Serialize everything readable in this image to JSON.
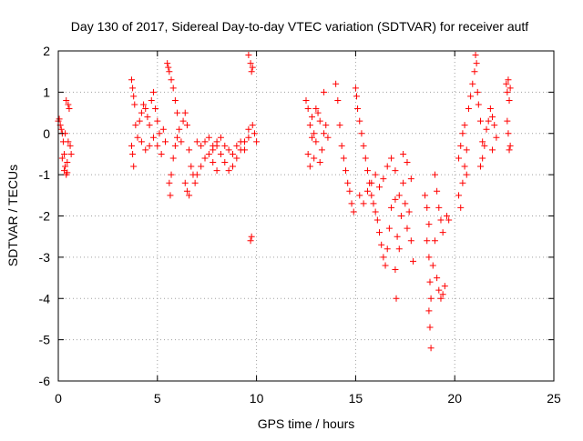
{
  "chart_data": {
    "type": "scatter",
    "title": "Day 130 of 2017, Sidereal Day-to-day VTEC variation (SDTVAR) for receiver autf",
    "xlabel": "GPS time / hours",
    "ylabel": "SDTVAR / TECUs",
    "xlim": [
      0,
      25
    ],
    "ylim": [
      -6,
      2
    ],
    "x_ticks": [
      0,
      5,
      10,
      15,
      20,
      25
    ],
    "y_ticks": [
      -6,
      -5,
      -4,
      -3,
      -2,
      -1,
      0,
      1,
      2
    ],
    "x_tick_labels": [
      "0",
      "5",
      "10",
      "15",
      "20",
      "25"
    ],
    "y_tick_labels": [
      "-6",
      "-5",
      "-4",
      "-3",
      "-2",
      "-1",
      "0",
      "1",
      "2"
    ],
    "grid": true,
    "marker": "+",
    "color": "#ff0000",
    "series": [
      {
        "name": "SDTVAR",
        "points": [
          [
            0.0,
            0.3
          ],
          [
            0.05,
            0.35
          ],
          [
            0.1,
            0.2
          ],
          [
            0.15,
            0.1
          ],
          [
            0.2,
            0.0
          ],
          [
            0.25,
            -0.2
          ],
          [
            0.3,
            -0.5
          ],
          [
            0.35,
            -0.8
          ],
          [
            0.4,
            -1.0
          ],
          [
            0.45,
            -0.7
          ],
          [
            0.2,
            -0.6
          ],
          [
            0.3,
            -0.9
          ],
          [
            0.4,
            0.8
          ],
          [
            0.5,
            0.7
          ],
          [
            0.55,
            0.6
          ],
          [
            0.6,
            -0.3
          ],
          [
            0.65,
            -0.5
          ],
          [
            0.5,
            -0.2
          ],
          [
            0.45,
            -0.95
          ],
          [
            0.35,
            0.0
          ],
          [
            3.7,
            1.3
          ],
          [
            3.75,
            1.1
          ],
          [
            3.8,
            0.9
          ],
          [
            3.85,
            0.7
          ],
          [
            3.7,
            -0.3
          ],
          [
            3.75,
            -0.5
          ],
          [
            3.8,
            -0.8
          ],
          [
            3.9,
            0.2
          ],
          [
            4.0,
            -0.1
          ],
          [
            4.1,
            0.3
          ],
          [
            4.2,
            0.5
          ],
          [
            4.3,
            0.7
          ],
          [
            4.4,
            0.6
          ],
          [
            4.5,
            0.4
          ],
          [
            4.6,
            0.2
          ],
          [
            4.7,
            0.8
          ],
          [
            4.8,
            1.0
          ],
          [
            4.9,
            0.6
          ],
          [
            5.0,
            0.3
          ],
          [
            5.1,
            0.0
          ],
          [
            4.2,
            -0.2
          ],
          [
            4.4,
            -0.4
          ],
          [
            4.6,
            -0.3
          ],
          [
            4.8,
            -0.1
          ],
          [
            5.0,
            -0.3
          ],
          [
            5.2,
            -0.5
          ],
          [
            5.3,
            0.1
          ],
          [
            5.4,
            -0.2
          ],
          [
            5.5,
            1.7
          ],
          [
            5.55,
            1.6
          ],
          [
            5.6,
            1.5
          ],
          [
            5.7,
            1.3
          ],
          [
            5.8,
            1.1
          ],
          [
            5.9,
            0.8
          ],
          [
            6.0,
            0.5
          ],
          [
            5.6,
            -1.2
          ],
          [
            5.65,
            -1.5
          ],
          [
            5.7,
            -1.0
          ],
          [
            5.8,
            -0.6
          ],
          [
            5.9,
            -0.3
          ],
          [
            6.0,
            -0.1
          ],
          [
            6.1,
            0.1
          ],
          [
            6.2,
            -0.2
          ],
          [
            6.3,
            0.3
          ],
          [
            6.4,
            0.5
          ],
          [
            6.5,
            0.2
          ],
          [
            6.6,
            -0.4
          ],
          [
            6.7,
            -0.8
          ],
          [
            6.8,
            -1.0
          ],
          [
            6.9,
            -1.2
          ],
          [
            7.0,
            -1.0
          ],
          [
            7.2,
            -0.8
          ],
          [
            7.4,
            -0.6
          ],
          [
            7.6,
            -0.5
          ],
          [
            7.8,
            -0.4
          ],
          [
            8.0,
            -0.3
          ],
          [
            8.2,
            -0.5
          ],
          [
            8.4,
            -0.7
          ],
          [
            8.6,
            -0.9
          ],
          [
            8.8,
            -0.8
          ],
          [
            9.0,
            -0.6
          ],
          [
            9.2,
            -0.4
          ],
          [
            9.4,
            -0.2
          ],
          [
            9.6,
            0.1
          ],
          [
            9.8,
            0.2
          ],
          [
            9.9,
            0.0
          ],
          [
            10.0,
            -0.2
          ],
          [
            7.0,
            -0.2
          ],
          [
            7.2,
            -0.3
          ],
          [
            7.4,
            -0.2
          ],
          [
            7.6,
            -0.1
          ],
          [
            7.8,
            -0.3
          ],
          [
            8.0,
            -0.2
          ],
          [
            8.2,
            -0.1
          ],
          [
            8.4,
            -0.3
          ],
          [
            8.6,
            -0.4
          ],
          [
            8.8,
            -0.5
          ],
          [
            9.0,
            -0.3
          ],
          [
            9.2,
            -0.2
          ],
          [
            9.4,
            -0.4
          ],
          [
            9.6,
            -0.1
          ],
          [
            6.5,
            -1.4
          ],
          [
            6.6,
            -1.5
          ],
          [
            6.4,
            -1.2
          ],
          [
            7.8,
            -0.7
          ],
          [
            8.0,
            -0.9
          ],
          [
            9.6,
            1.9
          ],
          [
            9.7,
            1.7
          ],
          [
            9.75,
            1.5
          ],
          [
            9.8,
            1.6
          ],
          [
            9.7,
            -2.6
          ],
          [
            9.75,
            -2.5
          ],
          [
            12.5,
            0.8
          ],
          [
            12.6,
            0.6
          ],
          [
            12.7,
            0.2
          ],
          [
            12.8,
            -0.1
          ],
          [
            12.6,
            -0.5
          ],
          [
            12.7,
            -0.8
          ],
          [
            12.8,
            0.4
          ],
          [
            12.9,
            0.0
          ],
          [
            13.0,
            -0.2
          ],
          [
            13.1,
            0.5
          ],
          [
            13.2,
            0.3
          ],
          [
            13.3,
            -0.4
          ],
          [
            13.4,
            0.0
          ],
          [
            13.5,
            0.2
          ],
          [
            13.4,
            1.0
          ],
          [
            13.6,
            -0.1
          ],
          [
            12.9,
            -0.6
          ],
          [
            13.2,
            -0.7
          ],
          [
            13.0,
            0.6
          ],
          [
            14.0,
            1.2
          ],
          [
            14.1,
            0.8
          ],
          [
            14.2,
            0.2
          ],
          [
            14.3,
            -0.3
          ],
          [
            14.4,
            -0.6
          ],
          [
            14.5,
            -0.9
          ],
          [
            14.6,
            -1.2
          ],
          [
            14.7,
            -1.4
          ],
          [
            14.8,
            -1.7
          ],
          [
            14.9,
            -1.9
          ],
          [
            15.0,
            1.1
          ],
          [
            15.05,
            0.9
          ],
          [
            15.1,
            0.6
          ],
          [
            15.2,
            0.3
          ],
          [
            15.3,
            0.0
          ],
          [
            15.4,
            -0.3
          ],
          [
            15.5,
            -0.6
          ],
          [
            15.6,
            -0.9
          ],
          [
            15.7,
            -1.2
          ],
          [
            15.8,
            -1.5
          ],
          [
            15.9,
            -1.7
          ],
          [
            16.0,
            -1.9
          ],
          [
            16.1,
            -2.1
          ],
          [
            16.2,
            -2.4
          ],
          [
            16.3,
            -2.7
          ],
          [
            16.4,
            -3.0
          ],
          [
            16.5,
            -3.2
          ],
          [
            16.6,
            -2.8
          ],
          [
            16.7,
            -2.3
          ],
          [
            16.8,
            -1.8
          ],
          [
            15.2,
            -1.5
          ],
          [
            15.4,
            -1.7
          ],
          [
            15.6,
            -1.4
          ],
          [
            15.8,
            -1.2
          ],
          [
            16.0,
            -1.0
          ],
          [
            16.2,
            -1.3
          ],
          [
            16.4,
            -1.1
          ],
          [
            16.6,
            -0.8
          ],
          [
            16.8,
            -0.6
          ],
          [
            17.0,
            -0.9
          ],
          [
            17.0,
            -3.3
          ],
          [
            17.05,
            -4.0
          ],
          [
            17.1,
            -2.5
          ],
          [
            17.2,
            -1.5
          ],
          [
            17.3,
            -2.0
          ],
          [
            17.4,
            -1.2
          ],
          [
            17.5,
            -1.7
          ],
          [
            17.6,
            -2.3
          ],
          [
            17.7,
            -1.9
          ],
          [
            17.8,
            -2.6
          ],
          [
            17.9,
            -3.1
          ],
          [
            17.6,
            -0.7
          ],
          [
            17.4,
            -0.5
          ],
          [
            17.8,
            -1.1
          ],
          [
            17.2,
            -2.8
          ],
          [
            17.0,
            -1.6
          ],
          [
            18.5,
            -1.5
          ],
          [
            18.6,
            -1.8
          ],
          [
            18.7,
            -2.2
          ],
          [
            18.7,
            -3.0
          ],
          [
            18.75,
            -3.6
          ],
          [
            18.8,
            -4.0
          ],
          [
            18.7,
            -4.3
          ],
          [
            18.75,
            -4.7
          ],
          [
            18.8,
            -5.2
          ],
          [
            18.9,
            -3.2
          ],
          [
            19.0,
            -1.0
          ],
          [
            19.1,
            -1.4
          ],
          [
            19.2,
            -1.8
          ],
          [
            19.3,
            -2.1
          ],
          [
            19.4,
            -2.4
          ],
          [
            19.1,
            -3.5
          ],
          [
            19.2,
            -3.8
          ],
          [
            19.3,
            -4.0
          ],
          [
            19.0,
            -2.6
          ],
          [
            18.6,
            -2.6
          ],
          [
            19.6,
            -2.0
          ],
          [
            19.7,
            -2.1
          ],
          [
            19.5,
            -3.7
          ],
          [
            19.4,
            -3.9
          ],
          [
            20.2,
            -0.6
          ],
          [
            20.3,
            -0.3
          ],
          [
            20.4,
            0.0
          ],
          [
            20.5,
            -0.8
          ],
          [
            20.6,
            -1.0
          ],
          [
            20.2,
            -1.5
          ],
          [
            20.3,
            -1.8
          ],
          [
            20.4,
            -1.2
          ],
          [
            20.5,
            0.2
          ],
          [
            20.6,
            -0.4
          ],
          [
            20.7,
            0.6
          ],
          [
            20.8,
            0.9
          ],
          [
            20.9,
            1.2
          ],
          [
            21.0,
            1.5
          ],
          [
            21.05,
            1.9
          ],
          [
            21.1,
            1.7
          ],
          [
            21.15,
            1.0
          ],
          [
            21.2,
            0.7
          ],
          [
            21.3,
            0.3
          ],
          [
            21.4,
            -0.2
          ],
          [
            21.3,
            -0.8
          ],
          [
            21.4,
            -0.6
          ],
          [
            21.5,
            -0.3
          ],
          [
            21.6,
            0.1
          ],
          [
            21.7,
            0.3
          ],
          [
            21.8,
            0.6
          ],
          [
            21.9,
            0.4
          ],
          [
            22.0,
            0.2
          ],
          [
            22.1,
            -0.1
          ],
          [
            21.9,
            -0.4
          ],
          [
            22.6,
            1.2
          ],
          [
            22.65,
            1.0
          ],
          [
            22.7,
            1.3
          ],
          [
            22.75,
            0.8
          ],
          [
            22.8,
            1.1
          ],
          [
            22.7,
            0.0
          ],
          [
            22.8,
            -0.3
          ],
          [
            22.75,
            -0.4
          ],
          [
            22.65,
            0.3
          ]
        ]
      }
    ]
  }
}
